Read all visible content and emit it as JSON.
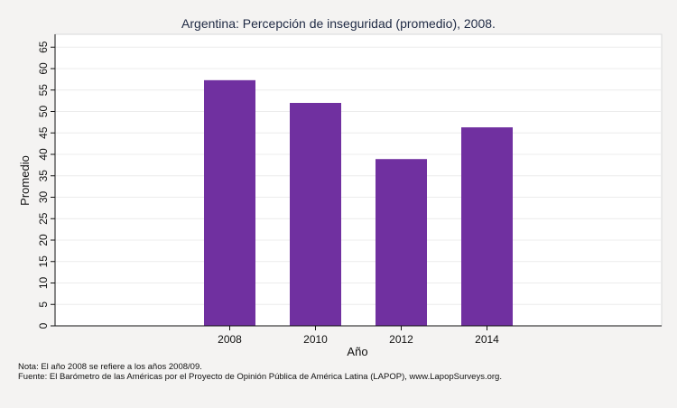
{
  "chart_data": {
    "type": "bar",
    "title": "Argentina: Percepción de inseguridad (promedio), 2008.",
    "xlabel": "Año",
    "ylabel": "Promedio",
    "categories": [
      "2008",
      "2010",
      "2012",
      "2014"
    ],
    "values": [
      57.3,
      52.0,
      38.9,
      46.3
    ],
    "ylim": [
      0,
      68
    ],
    "yticks": [
      0,
      5,
      10,
      15,
      20,
      25,
      30,
      35,
      40,
      45,
      50,
      55,
      60,
      65
    ],
    "grid": true,
    "bar_color": "#7030a0"
  },
  "notes": {
    "nota": "Nota: El año 2008 se refiere a los años 2008/09.",
    "fuente": "Fuente: El Barómetro de las Américas por el Proyecto de Opinión Pública de América Latina (LAPOP), www.LapopSurveys.org."
  }
}
